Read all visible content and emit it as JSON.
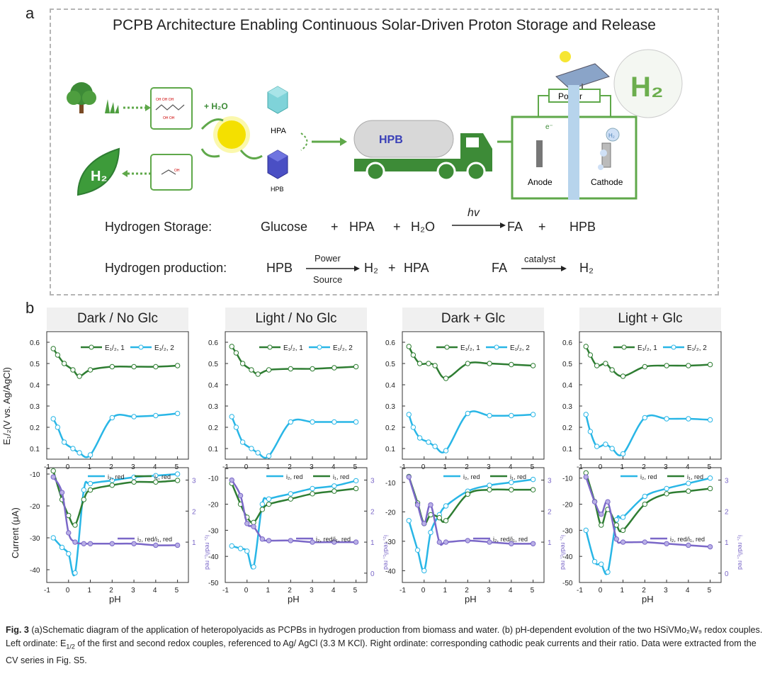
{
  "panel_a": {
    "letter": "a",
    "title": "PCPB Architecture Enabling Continuous Solar-Driven Proton Storage and Release",
    "labels": {
      "h2o": "+ H₂O",
      "hpa": "HPA",
      "hpb": "HPB",
      "truck": "HPB",
      "power": "Power",
      "electron": "e⁻",
      "h2_bubble": "H₂",
      "anode": "Anode",
      "cathode": "Cathode",
      "leaf_h2": "H₂",
      "big_h2": "H₂"
    },
    "storage_eq": {
      "label": "Hydrogen Storage:",
      "glucose": "Glucose",
      "plus1": "+",
      "hpa": "HPA",
      "plus2": "+",
      "h2o": "H₂O",
      "arrow_label": "hv",
      "fa": "FA",
      "plus3": "+",
      "hpb": "HPB"
    },
    "production_eq": {
      "label": "Hydrogen production:",
      "hpb": "HPB",
      "arrow_top": "Power",
      "arrow_bottom": "Source",
      "h2": "H₂",
      "plus": "+",
      "hpa": "HPA",
      "fa": "FA",
      "catalyst": "catalyst",
      "h2b": "H₂"
    },
    "colors": {
      "green": "#5fa84a",
      "dark_green": "#2e7d32",
      "sun": "#f4e000",
      "truck": "#3d8b37",
      "hpb_blue": "#4a4fc4"
    }
  },
  "panel_b": {
    "letter": "b",
    "titles": [
      "Dark / No Glc",
      "Light / No Glc",
      "Dark + Glc",
      "Light + Glc"
    ],
    "y_top_label": "E₁/₂(V vs. Ag/AgCl)",
    "y_bottom_label": "Current (μA)",
    "y_right_label": "i₂, red/i₁, red",
    "x_label": "pH",
    "legend_top": {
      "e1": "E₁/₂, 1",
      "e2": "E₁/₂, 2"
    },
    "legend_bottom": {
      "i2": "i₂, red",
      "i1": "i₁, red",
      "ratio": "i₂, red/i₁, red"
    },
    "colors": {
      "e1": "#2e7d32",
      "e2": "#29b6e6",
      "ratio": "#7b68c8"
    }
  },
  "chart_data": [
    {
      "type": "line",
      "title": "Dark / No Glc",
      "xlabel": "pH",
      "ylabel": "E1/2 (V vs. Ag/AgCl)",
      "x_ticks": [
        "-1",
        "0",
        "1",
        "2",
        "3",
        "4",
        "5"
      ],
      "y_ticks": [
        "0.1",
        "0.2",
        "0.3",
        "0.4",
        "0.5",
        "0.6"
      ],
      "xlim": [
        -1,
        5.5
      ],
      "ylim": [
        0.05,
        0.65
      ],
      "series": [
        {
          "name": "E1/2, 1",
          "x": [
            -0.7,
            -0.5,
            -0.2,
            0.2,
            0.5,
            1.0,
            2.0,
            3.0,
            4.0,
            5.0
          ],
          "y": [
            0.57,
            0.54,
            0.5,
            0.47,
            0.44,
            0.47,
            0.485,
            0.485,
            0.485,
            0.49
          ]
        },
        {
          "name": "E1/2, 2",
          "x": [
            -0.7,
            -0.5,
            -0.2,
            0.2,
            0.5,
            1.0,
            2.0,
            3.0,
            4.0,
            5.0
          ],
          "y": [
            0.24,
            0.2,
            0.13,
            0.1,
            0.08,
            0.07,
            0.245,
            0.25,
            0.255,
            0.265
          ]
        }
      ]
    },
    {
      "type": "line",
      "title": "Dark / No Glc",
      "xlabel": "pH",
      "ylabel": "Current (μA)",
      "x_ticks": [
        "-1",
        "0",
        "1",
        "2",
        "3",
        "4",
        "5"
      ],
      "y_ticks": [
        "-40",
        "-30",
        "-20",
        "-10"
      ],
      "y2_ticks": [
        "1",
        "2",
        "3"
      ],
      "xlim": [
        -1,
        5.5
      ],
      "ylim": [
        -44,
        -8
      ],
      "series": [
        {
          "name": "i2, red",
          "x": [
            -0.7,
            -0.3,
            0.0,
            0.3,
            0.7,
            1.0,
            2.0,
            3.0,
            4.0,
            5.0
          ],
          "y": [
            -30,
            -33,
            -35,
            -41,
            -15,
            -13,
            -12,
            -11,
            -10.5,
            -10
          ]
        },
        {
          "name": "i1, red",
          "x": [
            -0.7,
            -0.3,
            0.0,
            0.3,
            0.7,
            1.0,
            2.0,
            3.0,
            4.0,
            5.0
          ],
          "y": [
            -9,
            -18,
            -23,
            -26,
            -18,
            -15,
            -13.5,
            -12.5,
            -12.5,
            -12
          ]
        },
        {
          "name": "i2, red/i1, red",
          "x": [
            -0.7,
            -0.3,
            0.0,
            0.3,
            0.7,
            1.0,
            2.0,
            3.0,
            4.0,
            5.0
          ],
          "y": [
            3.1,
            2.6,
            1.3,
            1.0,
            0.95,
            0.95,
            0.95,
            0.95,
            0.9,
            0.9
          ]
        }
      ]
    },
    {
      "type": "line",
      "title": "Light / No Glc",
      "xlabel": "pH",
      "ylabel": "E1/2 (V vs. Ag/AgCl)",
      "x_ticks": [
        "-1",
        "0",
        "1",
        "2",
        "3",
        "4",
        "5"
      ],
      "y_ticks": [
        "0.1",
        "0.2",
        "0.3",
        "0.4",
        "0.5",
        "0.6"
      ],
      "xlim": [
        -1,
        5.5
      ],
      "ylim": [
        0.05,
        0.65
      ],
      "series": [
        {
          "name": "E1/2, 1",
          "x": [
            -0.7,
            -0.5,
            -0.2,
            0.2,
            0.5,
            1.0,
            2.0,
            3.0,
            4.0,
            5.0
          ],
          "y": [
            0.58,
            0.55,
            0.5,
            0.47,
            0.45,
            0.47,
            0.475,
            0.475,
            0.48,
            0.485
          ]
        },
        {
          "name": "E1/2, 2",
          "x": [
            -0.7,
            -0.5,
            -0.2,
            0.2,
            0.5,
            1.0,
            2.0,
            3.0,
            4.0,
            5.0
          ],
          "y": [
            0.25,
            0.2,
            0.13,
            0.1,
            0.08,
            0.065,
            0.225,
            0.225,
            0.225,
            0.225
          ]
        }
      ]
    },
    {
      "type": "line",
      "title": "Light / No Glc",
      "xlabel": "pH",
      "ylabel": "Current (μA)",
      "x_ticks": [
        "-1",
        "0",
        "1",
        "2",
        "3",
        "4",
        "5"
      ],
      "y_ticks": [
        "-50",
        "-40",
        "-30",
        "-20",
        "-10"
      ],
      "y2_ticks": [
        "0",
        "1",
        "2",
        "3"
      ],
      "xlim": [
        -1,
        5.5
      ],
      "ylim": [
        -50,
        -6
      ],
      "series": [
        {
          "name": "i2, red",
          "x": [
            -0.7,
            -0.3,
            0.0,
            0.3,
            0.7,
            1.0,
            2.0,
            3.0,
            4.0,
            5.0
          ],
          "y": [
            -36,
            -37,
            -38,
            -44,
            -20,
            -18,
            -16,
            -14,
            -13,
            -11
          ]
        },
        {
          "name": "i1, red",
          "x": [
            -0.7,
            -0.3,
            0.0,
            0.3,
            0.7,
            1.0,
            2.0,
            3.0,
            4.0,
            5.0
          ],
          "y": [
            -12,
            -20,
            -25,
            -27,
            -22,
            -20,
            -18,
            -16,
            -15,
            -14
          ]
        },
        {
          "name": "i2, red/i1, red",
          "x": [
            -0.7,
            -0.3,
            0.0,
            0.3,
            0.7,
            1.0,
            2.0,
            3.0,
            4.0,
            5.0
          ],
          "y": [
            3.0,
            2.5,
            1.6,
            1.5,
            1.1,
            1.05,
            1.05,
            1.0,
            1.0,
            1.0
          ]
        }
      ]
    },
    {
      "type": "line",
      "title": "Dark + Glc",
      "xlabel": "pH",
      "ylabel": "E1/2 (V vs. Ag/AgCl)",
      "x_ticks": [
        "-1",
        "0",
        "1",
        "2",
        "3",
        "4",
        "5"
      ],
      "y_ticks": [
        "0.1",
        "0.2",
        "0.3",
        "0.4",
        "0.5",
        "0.6"
      ],
      "xlim": [
        -1,
        5.5
      ],
      "ylim": [
        0.05,
        0.65
      ],
      "series": [
        {
          "name": "E1/2, 1",
          "x": [
            -0.7,
            -0.5,
            -0.2,
            0.2,
            0.5,
            1.0,
            2.0,
            3.0,
            4.0,
            5.0
          ],
          "y": [
            0.58,
            0.54,
            0.5,
            0.5,
            0.49,
            0.43,
            0.5,
            0.5,
            0.495,
            0.49
          ]
        },
        {
          "name": "E1/2, 2",
          "x": [
            -0.7,
            -0.5,
            -0.2,
            0.2,
            0.5,
            1.0,
            2.0,
            3.0,
            4.0,
            5.0
          ],
          "y": [
            0.26,
            0.2,
            0.15,
            0.13,
            0.11,
            0.09,
            0.265,
            0.255,
            0.255,
            0.26
          ]
        }
      ]
    },
    {
      "type": "line",
      "title": "Dark + Glc",
      "xlabel": "pH",
      "ylabel": "Current (μA)",
      "x_ticks": [
        "-1",
        "0",
        "1",
        "2",
        "3",
        "4",
        "5"
      ],
      "y_ticks": [
        "-40",
        "-30",
        "-20",
        "-10"
      ],
      "y2_ticks": [
        "1",
        "2",
        "3"
      ],
      "xlim": [
        -1,
        5.5
      ],
      "ylim": [
        -44,
        -5
      ],
      "series": [
        {
          "name": "i2, red",
          "x": [
            -0.7,
            -0.3,
            0.0,
            0.3,
            0.7,
            1.0,
            2.0,
            3.0,
            4.0,
            5.0
          ],
          "y": [
            -23,
            -33,
            -40,
            -27,
            -21,
            -18,
            -13,
            -11,
            -10,
            -9
          ]
        },
        {
          "name": "i1, red",
          "x": [
            -0.7,
            -0.3,
            0.0,
            0.3,
            0.7,
            1.0,
            2.0,
            3.0,
            4.0,
            5.0
          ],
          "y": [
            -8,
            -17,
            -24,
            -21,
            -22,
            -23,
            -14,
            -12.5,
            -12.5,
            -12.5
          ]
        },
        {
          "name": "i2, red/i1, red",
          "x": [
            -0.7,
            -0.3,
            0.0,
            0.3,
            0.7,
            1.0,
            2.0,
            3.0,
            4.0,
            5.0
          ],
          "y": [
            3.1,
            2.2,
            1.6,
            2.2,
            1.0,
            1.0,
            1.05,
            1.0,
            0.95,
            0.95
          ]
        }
      ]
    },
    {
      "type": "line",
      "title": "Light + Glc",
      "xlabel": "pH",
      "ylabel": "E1/2 (V vs. Ag/AgCl)",
      "x_ticks": [
        "-1",
        "0",
        "1",
        "2",
        "3",
        "4",
        "5"
      ],
      "y_ticks": [
        "0.1",
        "0.2",
        "0.3",
        "0.4",
        "0.5",
        "0.6"
      ],
      "xlim": [
        -1,
        5.5
      ],
      "ylim": [
        0.05,
        0.65
      ],
      "series": [
        {
          "name": "E1/2, 1",
          "x": [
            -0.7,
            -0.5,
            -0.2,
            0.2,
            0.5,
            1.0,
            2.0,
            3.0,
            4.0,
            5.0
          ],
          "y": [
            0.58,
            0.54,
            0.49,
            0.5,
            0.47,
            0.44,
            0.485,
            0.49,
            0.49,
            0.495
          ]
        },
        {
          "name": "E1/2, 2",
          "x": [
            -0.7,
            -0.5,
            -0.2,
            0.2,
            0.5,
            1.0,
            2.0,
            3.0,
            4.0,
            5.0
          ],
          "y": [
            0.26,
            0.18,
            0.11,
            0.12,
            0.1,
            0.075,
            0.245,
            0.24,
            0.24,
            0.235
          ]
        }
      ]
    },
    {
      "type": "line",
      "title": "Light + Glc",
      "xlabel": "pH",
      "ylabel": "Current (μA)",
      "x_ticks": [
        "-1",
        "0",
        "1",
        "2",
        "3",
        "4",
        "5"
      ],
      "y_ticks": [
        "-50",
        "-40",
        "-30",
        "-20",
        "-10"
      ],
      "y2_ticks": [
        "0",
        "1",
        "2",
        "3"
      ],
      "xlim": [
        -1,
        5.5
      ],
      "ylim": [
        -50,
        -6
      ],
      "series": [
        {
          "name": "i2, red",
          "x": [
            -0.7,
            -0.3,
            0.0,
            0.3,
            0.7,
            1.0,
            2.0,
            3.0,
            4.0,
            5.0
          ],
          "y": [
            -30,
            -42,
            -43,
            -46,
            -26,
            -25,
            -17,
            -14,
            -12,
            -10
          ]
        },
        {
          "name": "i1, red",
          "x": [
            -0.7,
            -0.3,
            0.0,
            0.3,
            0.7,
            1.0,
            2.0,
            3.0,
            4.0,
            5.0
          ],
          "y": [
            -8,
            -19,
            -28,
            -22,
            -28,
            -30,
            -20,
            -16,
            -15,
            -14
          ]
        },
        {
          "name": "i2, red/i1, red",
          "x": [
            -0.7,
            -0.3,
            0.0,
            0.3,
            0.7,
            1.0,
            2.0,
            3.0,
            4.0,
            5.0
          ],
          "y": [
            3.1,
            2.3,
            1.9,
            2.3,
            1.1,
            1.0,
            1.0,
            0.95,
            0.9,
            0.85
          ]
        }
      ]
    }
  ],
  "caption": {
    "fig_label": "Fig.",
    "fig_number": "3",
    "text1": "(a)Schematic diagram of the application of heteropolyacids as PCPBs in hydrogen production from biomass and water. (b) pH-dependent evolution of the two HSiVMo₂W₉ redox couples. Left ordinate: E",
    "sub": "1/2",
    "text2": " of the first and second redox couples, referenced to Ag/ AgCl (3.3 M KCl). Right ordinate: corresponding cathodic peak currents and their ratio. Data were extracted from the CV series in Fig. S5."
  }
}
